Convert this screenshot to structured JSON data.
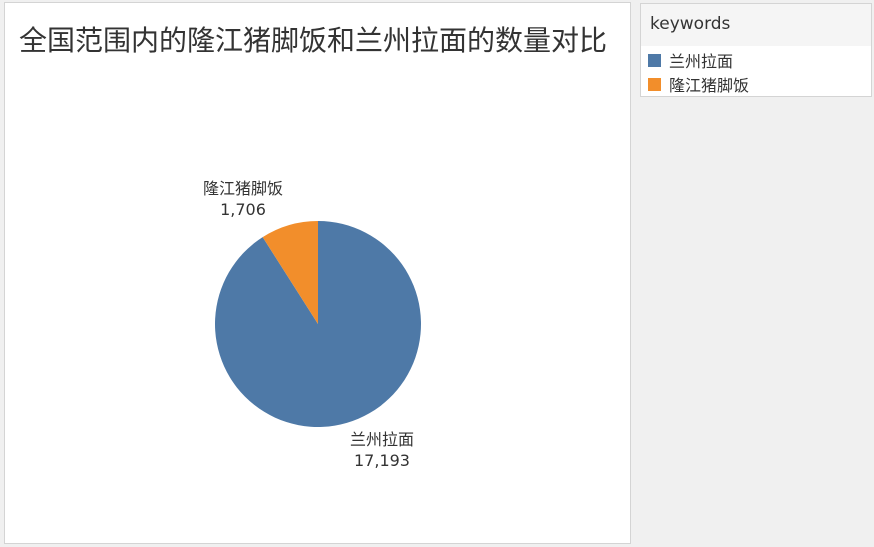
{
  "chart_data": {
    "type": "pie",
    "title": "全国范围内的隆江猪脚饭和兰州拉面的数量对比",
    "categories": [
      "兰州拉面",
      "隆江猪脚饭"
    ],
    "values": [
      17193,
      1706
    ],
    "value_labels": [
      "17,193",
      "1,706"
    ],
    "colors": [
      "#4e79a7",
      "#f28e2b"
    ],
    "legend": {
      "title": "keywords",
      "placement": "top-right"
    }
  }
}
